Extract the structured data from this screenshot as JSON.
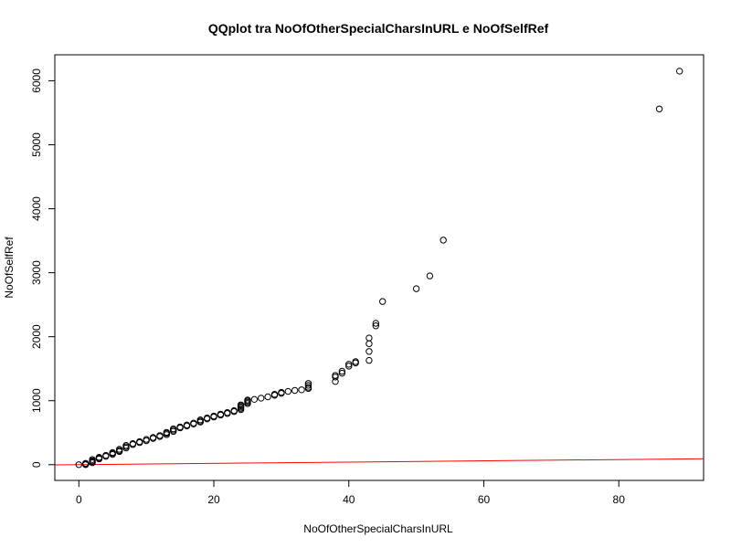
{
  "chart_data": {
    "type": "scatter",
    "title": "QQplot tra NoOfOtherSpecialCharsInURL e NoOfSelfRef",
    "xlabel": "NoOfOtherSpecialCharsInURL",
    "ylabel": "NoOfSelfRef",
    "xlim": [
      -3.56,
      92.56
    ],
    "ylim": [
      -246,
      6406
    ],
    "x_ticks": [
      0,
      20,
      40,
      60,
      80
    ],
    "y_ticks": [
      0,
      1000,
      2000,
      3000,
      4000,
      5000,
      6000
    ],
    "grid": false,
    "legend": "none",
    "point_color": "#000000",
    "reference_line": {
      "color": "#ff0000",
      "intercept": 0,
      "slope": 1
    },
    "points": [
      [
        0,
        0
      ],
      [
        1,
        0
      ],
      [
        1,
        10
      ],
      [
        1,
        20
      ],
      [
        2,
        30
      ],
      [
        2,
        45
      ],
      [
        2,
        60
      ],
      [
        2,
        80
      ],
      [
        3,
        90
      ],
      [
        3,
        100
      ],
      [
        3,
        115
      ],
      [
        4,
        130
      ],
      [
        4,
        145
      ],
      [
        5,
        160
      ],
      [
        5,
        175
      ],
      [
        5,
        190
      ],
      [
        6,
        205
      ],
      [
        6,
        220
      ],
      [
        6,
        240
      ],
      [
        7,
        260
      ],
      [
        7,
        280
      ],
      [
        7,
        300
      ],
      [
        8,
        315
      ],
      [
        8,
        330
      ],
      [
        9,
        345
      ],
      [
        9,
        360
      ],
      [
        10,
        375
      ],
      [
        10,
        395
      ],
      [
        11,
        410
      ],
      [
        11,
        425
      ],
      [
        12,
        440
      ],
      [
        12,
        455
      ],
      [
        13,
        470
      ],
      [
        13,
        490
      ],
      [
        13,
        505
      ],
      [
        14,
        520
      ],
      [
        14,
        540
      ],
      [
        14,
        560
      ],
      [
        15,
        575
      ],
      [
        15,
        590
      ],
      [
        16,
        605
      ],
      [
        16,
        620
      ],
      [
        17,
        635
      ],
      [
        17,
        650
      ],
      [
        18,
        665
      ],
      [
        18,
        680
      ],
      [
        18,
        700
      ],
      [
        19,
        715
      ],
      [
        19,
        730
      ],
      [
        20,
        745
      ],
      [
        20,
        760
      ],
      [
        21,
        775
      ],
      [
        21,
        790
      ],
      [
        22,
        800
      ],
      [
        22,
        815
      ],
      [
        23,
        830
      ],
      [
        23,
        845
      ],
      [
        24,
        860
      ],
      [
        24,
        880
      ],
      [
        24,
        900
      ],
      [
        24,
        920
      ],
      [
        24,
        935
      ],
      [
        25,
        955
      ],
      [
        25,
        975
      ],
      [
        25,
        995
      ],
      [
        25,
        1010
      ],
      [
        26,
        1020
      ],
      [
        27,
        1040
      ],
      [
        28,
        1060
      ],
      [
        29,
        1085
      ],
      [
        29,
        1100
      ],
      [
        30,
        1115
      ],
      [
        30,
        1130
      ],
      [
        31,
        1145
      ],
      [
        32,
        1160
      ],
      [
        33,
        1170
      ],
      [
        34,
        1190
      ],
      [
        34,
        1210
      ],
      [
        34,
        1240
      ],
      [
        34,
        1270
      ],
      [
        38,
        1300
      ],
      [
        38,
        1370
      ],
      [
        38,
        1395
      ],
      [
        39,
        1430
      ],
      [
        39,
        1460
      ],
      [
        40,
        1540
      ],
      [
        40,
        1570
      ],
      [
        41,
        1590
      ],
      [
        41,
        1610
      ],
      [
        43,
        1630
      ],
      [
        43,
        1770
      ],
      [
        43,
        1890
      ],
      [
        43,
        1980
      ],
      [
        44,
        2170
      ],
      [
        44,
        2210
      ],
      [
        45,
        2550
      ],
      [
        50,
        2750
      ],
      [
        52,
        2950
      ],
      [
        54,
        3510
      ],
      [
        86,
        5560
      ],
      [
        89,
        6150
      ]
    ]
  }
}
